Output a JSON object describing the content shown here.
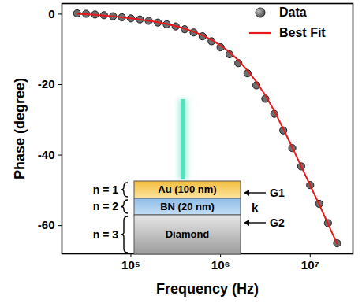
{
  "chart_data": {
    "type": "scatter",
    "x_label": "Frequency (Hz)",
    "y_label": "Phase (degree)",
    "log": "x",
    "grid": false,
    "legend": "top-right",
    "x": [
      25100,
      31600,
      39800,
      50100,
      63100,
      79400,
      100000,
      126000,
      158000,
      200000,
      251000,
      316000,
      398000,
      501000,
      631000,
      794000,
      1000000,
      1260000,
      1580000,
      2000000,
      2510000,
      3160000,
      3980000,
      5010000,
      6310000,
      7940000,
      10000000,
      12600000,
      15800000,
      20000000
    ],
    "series": [
      {
        "name": "Data",
        "type": "scatter",
        "marker": "circle",
        "color": "#6e6e6e",
        "values": [
          0.2,
          0.1,
          -0.1,
          -0.3,
          -0.6,
          -0.9,
          -1.2,
          -1.5,
          -1.9,
          -2.4,
          -2.9,
          -3.5,
          -4.3,
          -5.2,
          -6.3,
          -7.7,
          -9.4,
          -11.4,
          -13.9,
          -16.8,
          -20.2,
          -24.0,
          -28.3,
          -33.0,
          -38.0,
          -43.2,
          -48.5,
          -53.8,
          -59.3,
          -65.0
        ]
      },
      {
        "name": "Best Fit",
        "type": "line",
        "line_style": "solid",
        "color": "#e8191c",
        "values": [
          0.1,
          0.0,
          -0.2,
          -0.4,
          -0.6,
          -0.9,
          -1.2,
          -1.5,
          -1.9,
          -2.3,
          -2.8,
          -3.4,
          -4.1,
          -5.0,
          -6.0,
          -7.3,
          -8.9,
          -10.8,
          -13.1,
          -16.0,
          -19.2,
          -23.0,
          -27.5,
          -32.5,
          -37.8,
          -43.2,
          -48.6,
          -54.0,
          -59.5,
          -65.2
        ]
      }
    ],
    "xlim": [
      17000,
      30000000
    ],
    "xticks": [
      {
        "value": 100000,
        "label": "10⁵"
      },
      {
        "value": 1000000,
        "label": "10⁶"
      },
      {
        "value": 10000000,
        "label": "10⁷"
      }
    ],
    "ylim": [
      -68,
      3
    ],
    "yticks": [
      0,
      -20,
      -40,
      -60
    ],
    "annotations": {
      "layers": [
        {
          "index": "n = 1",
          "label": "Au (100 nm)"
        },
        {
          "index": "n = 2",
          "label": "BN (20 nm)"
        },
        {
          "index": "n = 3",
          "label": "Diamond"
        }
      ],
      "interfaces": [
        "G1",
        "G2"
      ],
      "layer_property": "k"
    }
  }
}
